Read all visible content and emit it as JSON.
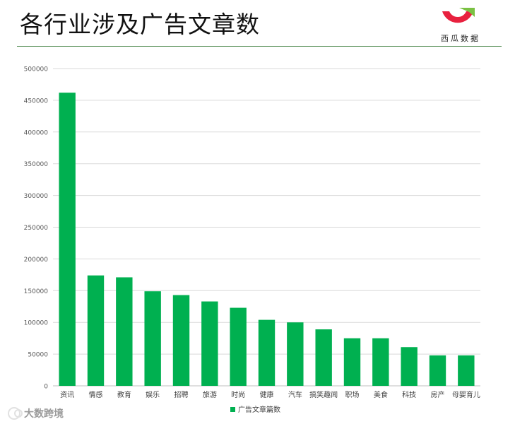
{
  "header": {
    "title": "各行业涉及广告文章数",
    "logo_text": "西瓜数据"
  },
  "colors": {
    "bar": "#00b050",
    "logo_red": "#e8213f",
    "logo_green": "#7ac143",
    "gridline": "#d9d9d9",
    "rule": "#4f8a4f"
  },
  "watermark": {
    "text": "大数跨境"
  },
  "chart_data": {
    "type": "bar",
    "title": "",
    "xlabel": "",
    "ylabel": "",
    "categories": [
      "资讯",
      "情感",
      "教育",
      "娱乐",
      "招聘",
      "旅游",
      "时尚",
      "健康",
      "汽车",
      "搞笑趣闻",
      "职场",
      "美食",
      "科技",
      "房产",
      "母婴育儿"
    ],
    "series": [
      {
        "name": "广告文章篇数",
        "values": [
          462000,
          174000,
          171000,
          149000,
          143000,
          133000,
          123000,
          104000,
          100000,
          89000,
          75000,
          75000,
          61000,
          48000,
          48000
        ]
      }
    ],
    "ylim": [
      0,
      500000
    ],
    "yticks": [
      "0",
      "50000",
      "100000",
      "150000",
      "200000",
      "250000",
      "300000",
      "350000",
      "400000",
      "450000",
      "500000"
    ],
    "grid": true,
    "legend": "bottom-center"
  }
}
